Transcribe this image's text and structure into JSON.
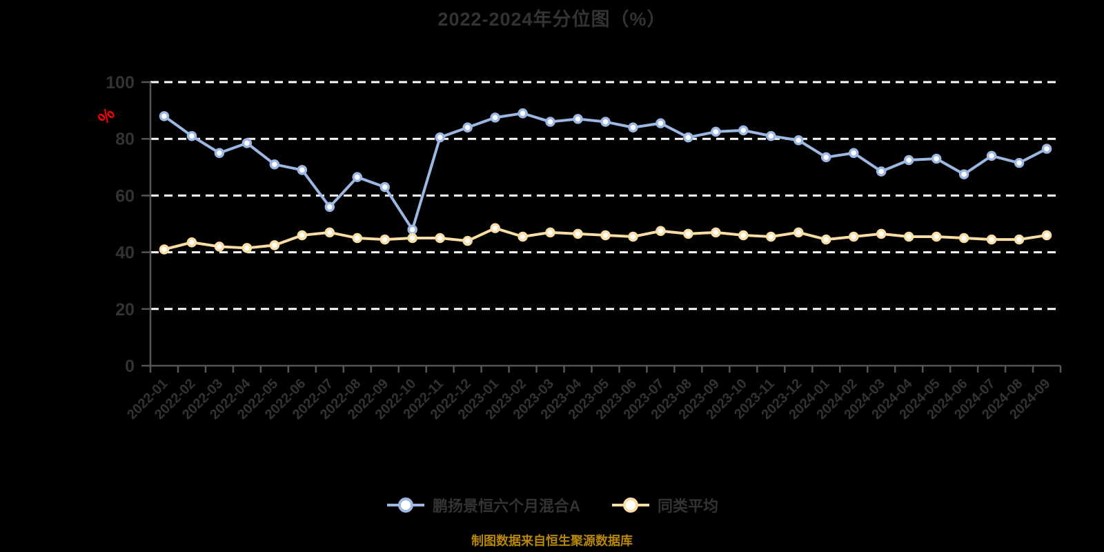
{
  "page": {
    "background_color": "#000000",
    "caption": "制图数据来自恒生聚源数据库",
    "caption_color": "#b8860b"
  },
  "chart_data": {
    "type": "line",
    "title": "2022-2024年分位图（%）",
    "title_color": "#333333",
    "ylabel": "%",
    "ylabel_color": "#ff0000",
    "ylim": [
      0,
      100
    ],
    "yticks": [
      0,
      20,
      40,
      60,
      80,
      100
    ],
    "grid": true,
    "grid_color": "#ffffff",
    "axis_color": "#555555",
    "tick_label_color": "#333333",
    "legend_position": "bottom",
    "legend_text_color": "#333333",
    "categories": [
      "2022-01",
      "2022-02",
      "2022-03",
      "2022-04",
      "2022-05",
      "2022-06",
      "2022-07",
      "2022-08",
      "2022-09",
      "2022-10",
      "2022-11",
      "2022-12",
      "2023-01",
      "2023-02",
      "2023-03",
      "2023-04",
      "2023-05",
      "2023-06",
      "2023-07",
      "2023-08",
      "2023-09",
      "2023-10",
      "2023-11",
      "2023-12",
      "2024-01",
      "2024-02",
      "2024-03",
      "2024-04",
      "2024-05",
      "2024-06",
      "2024-07",
      "2024-08",
      "2024-09"
    ],
    "series": [
      {
        "key": "fund",
        "name": "鹏扬景恒六个月混合A",
        "color": "#9db7e3",
        "marker_fill": "#ffffff",
        "values": [
          88,
          81,
          75,
          78.5,
          71,
          69,
          56,
          66.5,
          63,
          48,
          80.5,
          84,
          87.5,
          89,
          86,
          87,
          86,
          84,
          85.5,
          80.5,
          82.5,
          83,
          81,
          79.5,
          73.5,
          75,
          68.5,
          72.5,
          73,
          67.5,
          74,
          71.5,
          76.5
        ]
      },
      {
        "key": "peer-average",
        "name": "同类平均",
        "color": "#fadda4",
        "marker_fill": "#ffffff",
        "values": [
          41,
          43.5,
          42,
          41.5,
          42.5,
          46,
          47,
          45,
          44.5,
          45,
          45,
          44,
          48.5,
          45.5,
          47,
          46.5,
          46,
          45.5,
          47.5,
          46.5,
          47,
          46,
          45.5,
          47,
          44.5,
          45.5,
          46.5,
          45.5,
          45.5,
          45,
          44.5,
          44.5,
          46
        ]
      }
    ]
  }
}
